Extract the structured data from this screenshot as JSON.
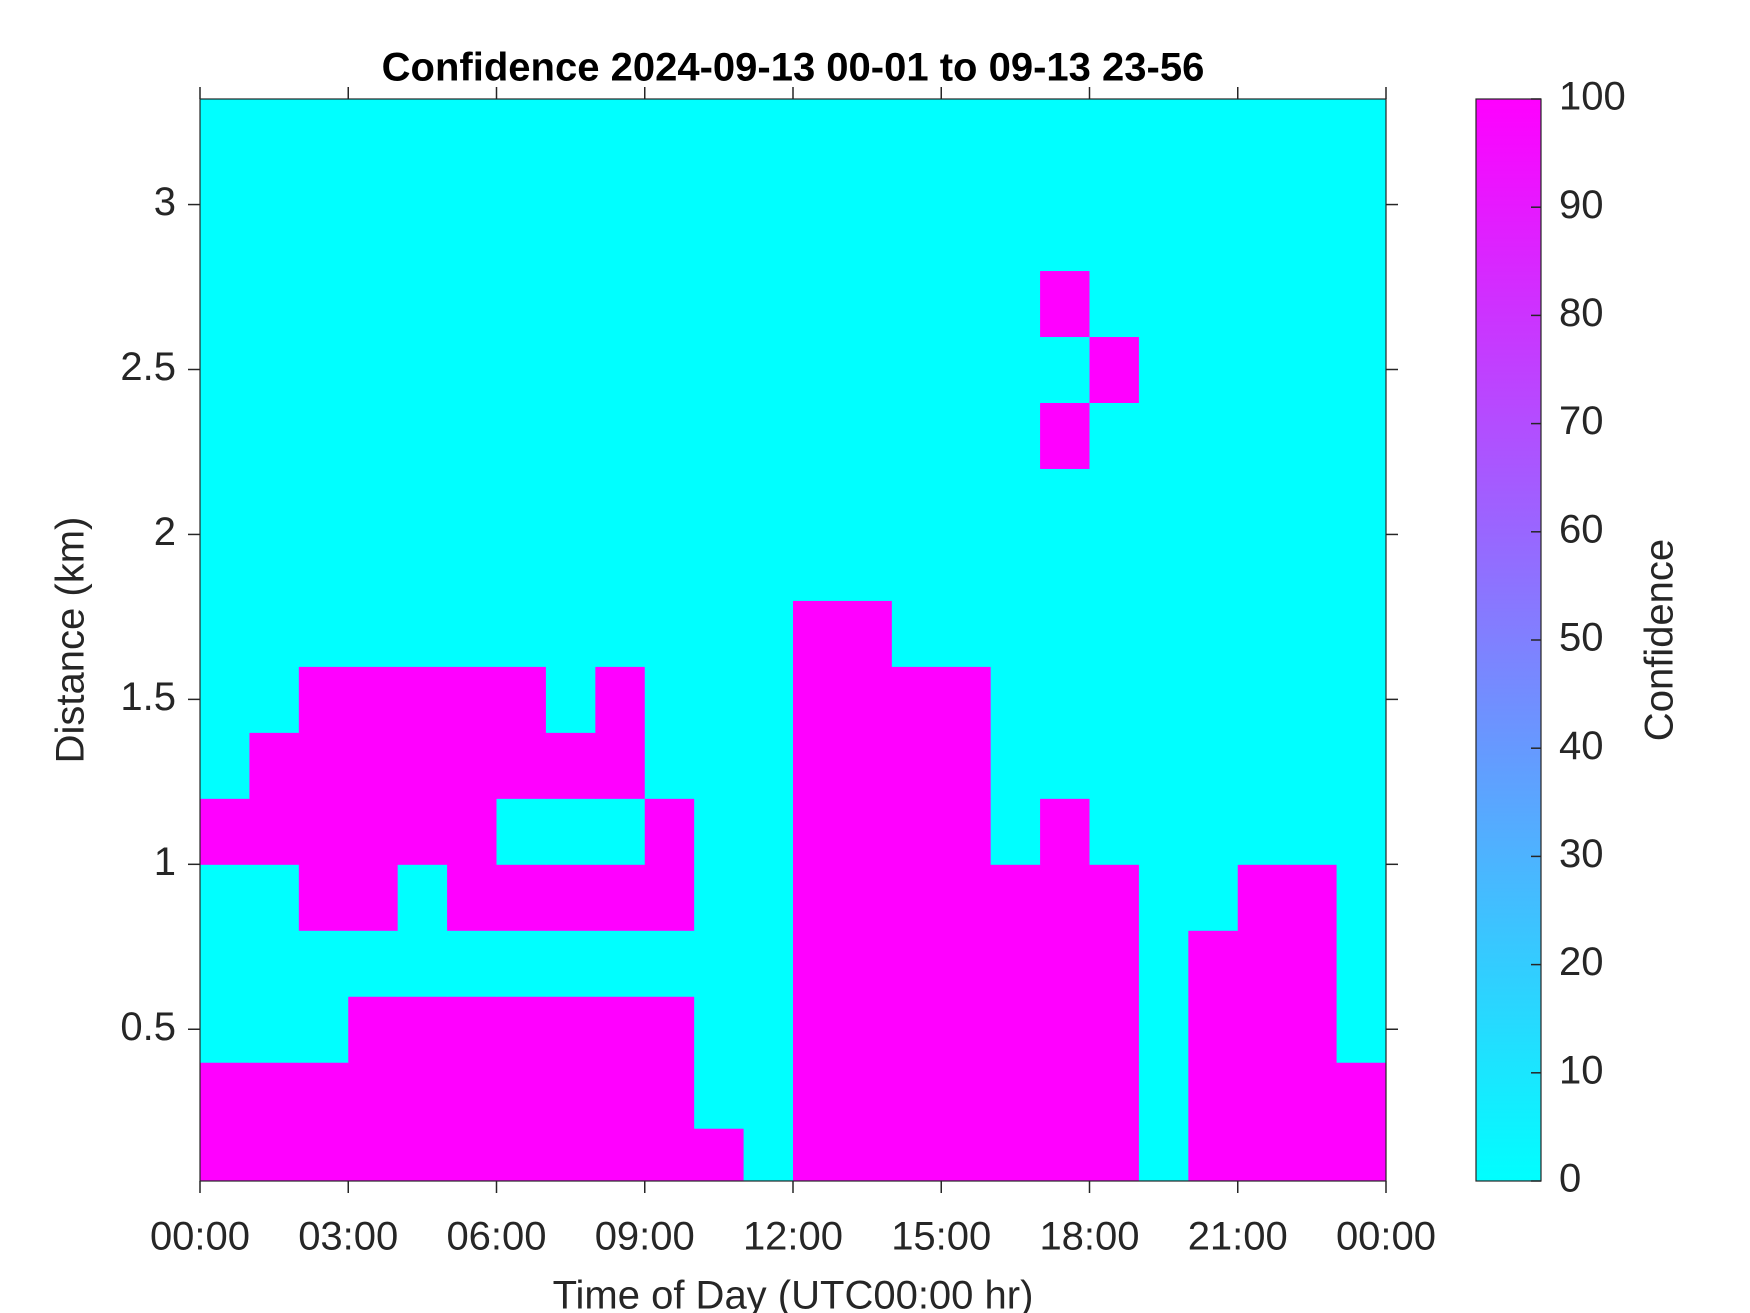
{
  "chart_data": {
    "type": "heatmap",
    "title": "Confidence 2024-09-13 00-01 to 09-13 23-56",
    "xlabel": "Time of Day (UTC00:00 hr)",
    "ylabel": "Distance (km)",
    "colorbar_label": "Confidence",
    "colormap": "cool",
    "clim": [
      0,
      100
    ],
    "colorbar_ticks": [
      0,
      10,
      20,
      30,
      40,
      50,
      60,
      70,
      80,
      90,
      100
    ],
    "xlim": [
      0,
      24
    ],
    "xticks": [
      {
        "value": 0,
        "label": "00:00"
      },
      {
        "value": 3,
        "label": "03:00"
      },
      {
        "value": 6,
        "label": "06:00"
      },
      {
        "value": 9,
        "label": "09:00"
      },
      {
        "value": 12,
        "label": "12:00"
      },
      {
        "value": 15,
        "label": "15:00"
      },
      {
        "value": 18,
        "label": "18:00"
      },
      {
        "value": 21,
        "label": "21:00"
      },
      {
        "value": 24,
        "label": "00:00"
      }
    ],
    "ylim": [
      0.04,
      3.32
    ],
    "yticks": [
      0.5,
      1,
      1.5,
      2,
      2.5,
      3
    ],
    "xbins": [
      0,
      1,
      2,
      3,
      4,
      5,
      6,
      7,
      8,
      9,
      10,
      11,
      12,
      13,
      14,
      15,
      16,
      17,
      18,
      19,
      20,
      21,
      22,
      23,
      24
    ],
    "ybins": [
      0.04,
      0.2,
      0.4,
      0.6,
      0.8,
      1.0,
      1.2,
      1.4,
      1.6,
      1.8,
      2.0,
      2.2,
      2.4,
      2.6,
      2.8,
      3.0,
      3.2,
      3.32
    ],
    "z": [
      [
        100,
        100,
        100,
        100,
        100,
        100,
        100,
        100,
        100,
        100,
        100,
        0,
        100,
        100,
        100,
        100,
        100,
        100,
        100,
        0,
        100,
        100,
        100,
        100
      ],
      [
        100,
        100,
        100,
        100,
        100,
        100,
        100,
        100,
        100,
        100,
        0,
        0,
        100,
        100,
        100,
        100,
        100,
        100,
        100,
        0,
        100,
        100,
        100,
        100
      ],
      [
        0,
        0,
        0,
        100,
        100,
        100,
        100,
        100,
        100,
        100,
        0,
        0,
        100,
        100,
        100,
        100,
        100,
        100,
        100,
        0,
        100,
        100,
        100,
        0
      ],
      [
        0,
        0,
        0,
        0,
        0,
        0,
        0,
        0,
        0,
        0,
        0,
        0,
        100,
        100,
        100,
        100,
        100,
        100,
        100,
        0,
        100,
        100,
        100,
        0
      ],
      [
        0,
        0,
        100,
        100,
        0,
        100,
        100,
        100,
        100,
        100,
        0,
        0,
        100,
        100,
        100,
        100,
        100,
        100,
        100,
        0,
        0,
        100,
        100,
        0
      ],
      [
        100,
        100,
        100,
        100,
        100,
        100,
        0,
        0,
        0,
        100,
        0,
        0,
        100,
        100,
        100,
        100,
        0,
        100,
        0,
        0,
        0,
        0,
        0,
        0
      ],
      [
        0,
        100,
        100,
        100,
        100,
        100,
        100,
        100,
        100,
        0,
        0,
        0,
        100,
        100,
        100,
        100,
        0,
        0,
        0,
        0,
        0,
        0,
        0,
        0
      ],
      [
        0,
        0,
        100,
        100,
        100,
        100,
        100,
        0,
        100,
        0,
        0,
        0,
        100,
        100,
        100,
        100,
        0,
        0,
        0,
        0,
        0,
        0,
        0,
        0
      ],
      [
        0,
        0,
        0,
        0,
        0,
        0,
        0,
        0,
        0,
        0,
        0,
        0,
        100,
        100,
        0,
        0,
        0,
        0,
        0,
        0,
        0,
        0,
        0,
        0
      ],
      [
        0,
        0,
        0,
        0,
        0,
        0,
        0,
        0,
        0,
        0,
        0,
        0,
        0,
        0,
        0,
        0,
        0,
        0,
        0,
        0,
        0,
        0,
        0,
        0
      ],
      [
        0,
        0,
        0,
        0,
        0,
        0,
        0,
        0,
        0,
        0,
        0,
        0,
        0,
        0,
        0,
        0,
        0,
        0,
        0,
        0,
        0,
        0,
        0,
        0
      ],
      [
        0,
        0,
        0,
        0,
        0,
        0,
        0,
        0,
        0,
        0,
        0,
        0,
        0,
        0,
        0,
        0,
        0,
        100,
        0,
        0,
        0,
        0,
        0,
        0
      ],
      [
        0,
        0,
        0,
        0,
        0,
        0,
        0,
        0,
        0,
        0,
        0,
        0,
        0,
        0,
        0,
        0,
        0,
        0,
        100,
        0,
        0,
        0,
        0,
        0
      ],
      [
        0,
        0,
        0,
        0,
        0,
        0,
        0,
        0,
        0,
        0,
        0,
        0,
        0,
        0,
        0,
        0,
        0,
        100,
        0,
        0,
        0,
        0,
        0,
        0
      ],
      [
        0,
        0,
        0,
        0,
        0,
        0,
        0,
        0,
        0,
        0,
        0,
        0,
        0,
        0,
        0,
        0,
        0,
        0,
        0,
        0,
        0,
        0,
        0,
        0
      ],
      [
        0,
        0,
        0,
        0,
        0,
        0,
        0,
        0,
        0,
        0,
        0,
        0,
        0,
        0,
        0,
        0,
        0,
        0,
        0,
        0,
        0,
        0,
        0,
        0
      ],
      [
        0,
        0,
        0,
        0,
        0,
        0,
        0,
        0,
        0,
        0,
        0,
        0,
        0,
        0,
        0,
        0,
        0,
        0,
        0,
        0,
        0,
        0,
        0,
        0
      ]
    ]
  }
}
